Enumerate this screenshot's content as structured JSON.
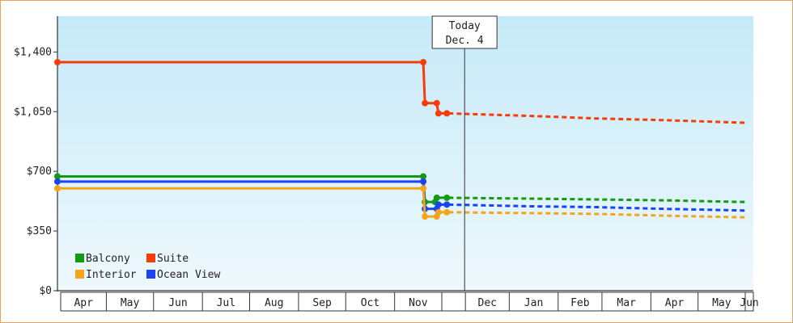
{
  "today": {
    "line1": "Today",
    "line2": "Dec. 4",
    "x": 12.1
  },
  "chart_data": {
    "type": "line",
    "title": "",
    "xlabel": "",
    "ylabel": "",
    "ylim": [
      0,
      1610
    ],
    "xlim": [
      0,
      20.4
    ],
    "yticks": [
      {
        "value": 0,
        "label": "$0"
      },
      {
        "value": 350,
        "label": "$350"
      },
      {
        "value": 700,
        "label": "$700"
      },
      {
        "value": 1050,
        "label": "$1,050"
      },
      {
        "value": 1400,
        "label": "$1,400"
      }
    ],
    "months": [
      {
        "label": "Apr",
        "start": 0.0,
        "end": 1.45
      },
      {
        "label": "May",
        "start": 1.45,
        "end": 2.85
      },
      {
        "label": "Jun",
        "start": 2.85,
        "end": 4.3
      },
      {
        "label": "Jul",
        "start": 4.3,
        "end": 5.7
      },
      {
        "label": "Aug",
        "start": 5.7,
        "end": 7.15
      },
      {
        "label": "Sep",
        "start": 7.15,
        "end": 8.55
      },
      {
        "label": "Oct",
        "start": 8.55,
        "end": 10.0
      },
      {
        "label": "Nov",
        "start": 10.0,
        "end": 11.4
      },
      {
        "label": "",
        "start": 11.4,
        "end": 12.1
      },
      {
        "label": "Dec",
        "start": 12.1,
        "end": 13.4
      },
      {
        "label": "Jan",
        "start": 13.4,
        "end": 14.85
      },
      {
        "label": "Feb",
        "start": 14.85,
        "end": 16.15
      },
      {
        "label": "Mar",
        "start": 16.15,
        "end": 17.6
      },
      {
        "label": "Apr",
        "start": 17.6,
        "end": 19.0
      },
      {
        "label": "May",
        "start": 19.0,
        "end": 20.4
      },
      {
        "label": "Jun",
        "start": 20.4,
        "end": 21.1
      }
    ],
    "series": [
      {
        "name": "Suite",
        "color": "#f53d0a",
        "points": [
          [
            0.0,
            1340
          ],
          [
            10.85,
            1340
          ],
          [
            10.9,
            1100
          ],
          [
            11.25,
            1100
          ],
          [
            11.3,
            1040
          ],
          [
            11.55,
            1040
          ]
        ],
        "markers": [
          [
            0.0,
            1340
          ],
          [
            10.85,
            1340
          ],
          [
            10.9,
            1100
          ],
          [
            11.25,
            1100
          ],
          [
            11.3,
            1040
          ],
          [
            11.55,
            1040
          ]
        ],
        "forecast": [
          [
            11.6,
            1040
          ],
          [
            14.0,
            1025
          ],
          [
            16.0,
            1010
          ],
          [
            18.0,
            1000
          ],
          [
            20.4,
            985
          ]
        ]
      },
      {
        "name": "Balcony",
        "color": "#139a13",
        "points": [
          [
            0.0,
            670
          ],
          [
            10.85,
            670
          ],
          [
            10.9,
            520
          ],
          [
            11.2,
            520
          ],
          [
            11.25,
            545
          ],
          [
            11.55,
            545
          ]
        ],
        "markers": [
          [
            0.0,
            670
          ],
          [
            10.85,
            670
          ],
          [
            10.9,
            520
          ],
          [
            11.2,
            520
          ],
          [
            11.25,
            545
          ],
          [
            11.55,
            545
          ]
        ],
        "forecast": [
          [
            11.6,
            545
          ],
          [
            14.0,
            540
          ],
          [
            16.0,
            535
          ],
          [
            18.0,
            530
          ],
          [
            20.4,
            520
          ]
        ]
      },
      {
        "name": "Ocean View",
        "color": "#1b44f0",
        "points": [
          [
            0.0,
            640
          ],
          [
            10.85,
            640
          ],
          [
            10.9,
            480
          ],
          [
            11.25,
            480
          ],
          [
            11.3,
            505
          ],
          [
            11.55,
            505
          ]
        ],
        "markers": [
          [
            0.0,
            640
          ],
          [
            10.85,
            640
          ],
          [
            10.9,
            480
          ],
          [
            11.25,
            480
          ],
          [
            11.3,
            505
          ],
          [
            11.55,
            505
          ]
        ],
        "forecast": [
          [
            11.6,
            505
          ],
          [
            14.0,
            495
          ],
          [
            16.0,
            490
          ],
          [
            18.0,
            480
          ],
          [
            20.4,
            470
          ]
        ]
      },
      {
        "name": "Interior",
        "color": "#f4a51c",
        "points": [
          [
            0.0,
            600
          ],
          [
            10.85,
            600
          ],
          [
            10.9,
            435
          ],
          [
            11.25,
            435
          ],
          [
            11.3,
            460
          ],
          [
            11.55,
            460
          ]
        ],
        "markers": [
          [
            0.0,
            600
          ],
          [
            10.85,
            600
          ],
          [
            10.9,
            435
          ],
          [
            11.25,
            435
          ],
          [
            11.3,
            460
          ],
          [
            11.55,
            460
          ]
        ],
        "forecast": [
          [
            11.6,
            460
          ],
          [
            14.0,
            455
          ],
          [
            16.0,
            450
          ],
          [
            18.0,
            440
          ],
          [
            20.4,
            430
          ]
        ]
      }
    ],
    "legend": [
      {
        "name": "Balcony",
        "color": "#139a13"
      },
      {
        "name": "Suite",
        "color": "#f53d0a"
      },
      {
        "name": "Interior",
        "color": "#f4a51c"
      },
      {
        "name": "Ocean View",
        "color": "#1b44f0"
      }
    ],
    "legend_position": "bottom-left"
  }
}
